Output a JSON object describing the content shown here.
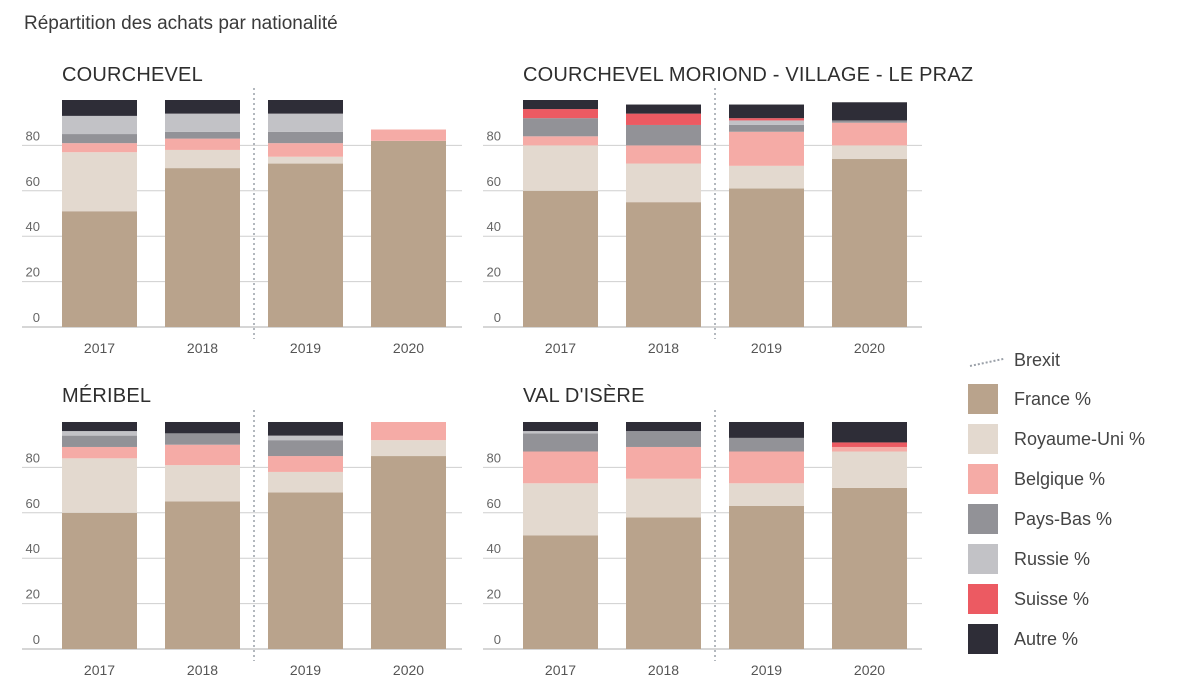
{
  "title": "Répartition des achats par nationalité",
  "legend": {
    "brexit_label": "Brexit",
    "items": [
      {
        "key": "france",
        "label": "France %",
        "color": "#b9a38c"
      },
      {
        "key": "royaume_uni",
        "label": "Royaume-Uni %",
        "color": "#e3d9cf"
      },
      {
        "key": "belgique",
        "label": "Belgique %",
        "color": "#f5aba6"
      },
      {
        "key": "pays_bas",
        "label": "Pays-Bas %",
        "color": "#929297"
      },
      {
        "key": "russie",
        "label": "Russie %",
        "color": "#c2c2c6"
      },
      {
        "key": "suisse",
        "label": "Suisse %",
        "color": "#ec5a62"
      },
      {
        "key": "autre",
        "label": "Autre %",
        "color": "#2e2d37"
      }
    ]
  },
  "chart_data": [
    {
      "type": "bar",
      "title": "COURCHEVEL",
      "categories": [
        "2017",
        "2018",
        "2019",
        "2020"
      ],
      "yticks": [
        "0",
        "20",
        "40",
        "60",
        "80"
      ],
      "ylim": [
        0,
        100
      ],
      "brexit_between": [
        "2018",
        "2019"
      ],
      "series": [
        {
          "name": "France %",
          "values": [
            51,
            70,
            72,
            82
          ]
        },
        {
          "name": "Royaume-Uni %",
          "values": [
            26,
            8,
            3,
            0
          ]
        },
        {
          "name": "Belgique %",
          "values": [
            4,
            5,
            6,
            5
          ]
        },
        {
          "name": "Pays-Bas %",
          "values": [
            4,
            3,
            5,
            0
          ]
        },
        {
          "name": "Russie %",
          "values": [
            8,
            8,
            8,
            0
          ]
        },
        {
          "name": "Suisse %",
          "values": [
            0,
            0,
            0,
            0
          ]
        },
        {
          "name": "Autre %",
          "values": [
            7,
            6,
            6,
            0
          ]
        }
      ]
    },
    {
      "type": "bar",
      "title": "COURCHEVEL MORIOND - VILLAGE - LE PRAZ",
      "categories": [
        "2017",
        "2018",
        "2019",
        "2020"
      ],
      "yticks": [
        "0",
        "20",
        "40",
        "60",
        "80"
      ],
      "ylim": [
        0,
        100
      ],
      "brexit_between": [
        "2018",
        "2019"
      ],
      "series": [
        {
          "name": "France %",
          "values": [
            60,
            55,
            61,
            74
          ]
        },
        {
          "name": "Royaume-Uni %",
          "values": [
            20,
            17,
            10,
            6
          ]
        },
        {
          "name": "Belgique %",
          "values": [
            4,
            8,
            15,
            10
          ]
        },
        {
          "name": "Pays-Bas %",
          "values": [
            8,
            9,
            3,
            1
          ]
        },
        {
          "name": "Russie %",
          "values": [
            0,
            0,
            2,
            0
          ]
        },
        {
          "name": "Suisse %",
          "values": [
            4,
            5,
            1,
            0
          ]
        },
        {
          "name": "Autre %",
          "values": [
            4,
            4,
            6,
            8
          ]
        }
      ]
    },
    {
      "type": "bar",
      "title": "MÉRIBEL",
      "categories": [
        "2017",
        "2018",
        "2019",
        "2020"
      ],
      "yticks": [
        "0",
        "20",
        "40",
        "60",
        "80"
      ],
      "ylim": [
        0,
        100
      ],
      "brexit_between": [
        "2018",
        "2019"
      ],
      "series": [
        {
          "name": "France %",
          "values": [
            60,
            65,
            69,
            85
          ]
        },
        {
          "name": "Royaume-Uni %",
          "values": [
            24,
            16,
            9,
            7
          ]
        },
        {
          "name": "Belgique %",
          "values": [
            5,
            9,
            7,
            8
          ]
        },
        {
          "name": "Pays-Bas %",
          "values": [
            5,
            5,
            7,
            0
          ]
        },
        {
          "name": "Russie %",
          "values": [
            2,
            0,
            2,
            0
          ]
        },
        {
          "name": "Suisse %",
          "values": [
            0,
            0,
            0,
            0
          ]
        },
        {
          "name": "Autre %",
          "values": [
            4,
            5,
            6,
            0
          ]
        }
      ]
    },
    {
      "type": "bar",
      "title": "VAL D'ISÈRE",
      "categories": [
        "2017",
        "2018",
        "2019",
        "2020"
      ],
      "yticks": [
        "0",
        "20",
        "40",
        "60",
        "80"
      ],
      "ylim": [
        0,
        100
      ],
      "brexit_between": [
        "2018",
        "2019"
      ],
      "series": [
        {
          "name": "France %",
          "values": [
            50,
            58,
            63,
            71
          ]
        },
        {
          "name": "Royaume-Uni %",
          "values": [
            23,
            17,
            10,
            16
          ]
        },
        {
          "name": "Belgique %",
          "values": [
            14,
            14,
            14,
            2
          ]
        },
        {
          "name": "Pays-Bas %",
          "values": [
            8,
            7,
            6,
            0
          ]
        },
        {
          "name": "Russie %",
          "values": [
            1,
            0,
            0,
            0
          ]
        },
        {
          "name": "Suisse %",
          "values": [
            0,
            0,
            0,
            2
          ]
        },
        {
          "name": "Autre %",
          "values": [
            4,
            4,
            7,
            9
          ]
        }
      ]
    }
  ]
}
